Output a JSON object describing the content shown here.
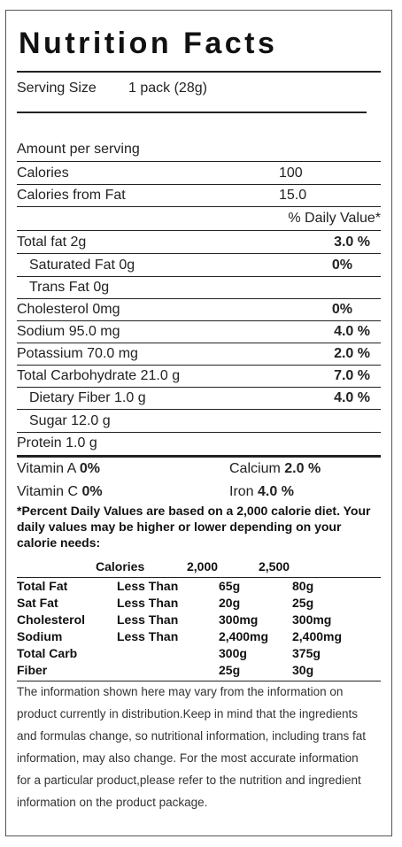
{
  "title": "Nutrition Facts",
  "serving": {
    "label": "Serving Size",
    "value": "1 pack (28g)"
  },
  "amount_per_serving": "Amount per serving",
  "calories": {
    "label": "Calories",
    "value": "100"
  },
  "calories_fat": {
    "label": "Calories from Fat",
    "value": "15.0"
  },
  "daily_value_header": "% Daily Value*",
  "nutrients": [
    {
      "label": "Total fat 2g",
      "dv": "3.0 %"
    },
    {
      "label": "Saturated Fat 0g",
      "dv": "0%"
    },
    {
      "label": "Trans Fat 0g",
      "dv": ""
    },
    {
      "label": "Cholesterol 0mg",
      "dv": "0%"
    },
    {
      "label": "Sodium 95.0 mg",
      "dv": "4.0 %"
    },
    {
      "label": "Potassium 70.0 mg",
      "dv": "2.0 %"
    },
    {
      "label": "Total Carbohydrate 21.0 g",
      "dv": "7.0 %"
    },
    {
      "label": "Dietary Fiber 1.0 g",
      "dv": "4.0 %"
    },
    {
      "label": "Sugar 12.0 g",
      "dv": ""
    },
    {
      "label": "Protein 1.0 g",
      "dv": ""
    }
  ],
  "vitamins": {
    "a_label": "Vitamin A",
    "a_value": "0%",
    "calcium_label": "Calcium",
    "calcium_value": "2.0 %",
    "c_label": "Vitamin C",
    "c_value": "0%",
    "iron_label": "Iron",
    "iron_value": "4.0 %"
  },
  "footnote": "*Percent Daily Values are based on a 2,000 calorie diet. Your daily values may be higher or lower depending on your calorie needs:",
  "dv_table": {
    "header": [
      "Calories",
      "2,000",
      "2,500"
    ],
    "rows": [
      [
        "Total Fat",
        "Less Than",
        "65g",
        "80g"
      ],
      [
        "Sat Fat",
        "Less Than",
        "20g",
        "25g"
      ],
      [
        "Cholesterol",
        "Less Than",
        "300mg",
        "300mg"
      ],
      [
        "Sodium",
        "Less Than",
        "2,400mg",
        "2,400mg"
      ],
      [
        "Total Carb",
        "",
        "300g",
        "375g"
      ],
      [
        "Fiber",
        "",
        "25g",
        "30g"
      ]
    ]
  },
  "disclaimer": "The information shown here may vary from the information on product currently in distribution.Keep in mind that the ingredients and formulas change, so nutritional information, including trans fat information, may also change. For the most accurate information for a particular product,please refer to the nutrition and ingredient information on the product package."
}
